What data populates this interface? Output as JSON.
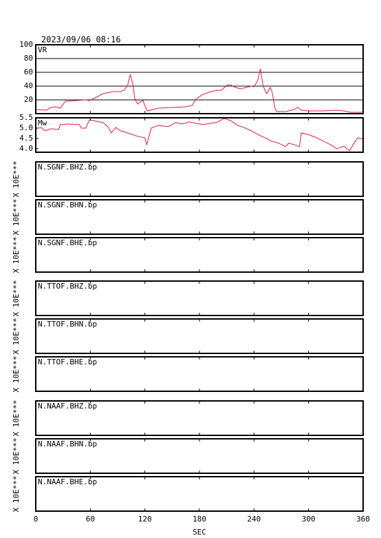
{
  "title": "2023/09/06 08:16",
  "chart_data": [
    {
      "type": "line",
      "label": "VR",
      "color": "#d81b50",
      "x": [
        0,
        12,
        15,
        21,
        27,
        32.5,
        44,
        55,
        59,
        67,
        74,
        85,
        93,
        97,
        101,
        103,
        104,
        107,
        109,
        112,
        116,
        118,
        121,
        123,
        135,
        150,
        165,
        172,
        176,
        184,
        195,
        204,
        210,
        214,
        218,
        225,
        231,
        237,
        240,
        244,
        247,
        248,
        250,
        254,
        258,
        260,
        263,
        265,
        275,
        284,
        288,
        292,
        301,
        316,
        331,
        339,
        346,
        360
      ],
      "values": [
        6,
        5,
        8,
        10,
        8,
        18,
        19,
        20,
        19,
        24,
        29,
        32,
        32,
        34,
        41,
        52,
        57,
        41,
        21,
        14,
        18,
        19,
        8,
        4,
        8,
        9,
        10,
        12,
        21,
        28,
        33,
        34,
        41,
        42,
        39,
        36,
        38,
        40,
        39,
        48,
        65,
        57,
        40,
        29,
        38,
        31,
        8,
        3,
        3,
        6,
        9,
        5,
        4,
        4,
        5,
        4,
        2,
        2
      ],
      "ylim": [
        0,
        100
      ],
      "yticks": [
        20,
        40,
        60,
        80,
        100
      ],
      "grid": true
    },
    {
      "type": "line",
      "label": "Mw",
      "color": "#d81b50",
      "x": [
        0,
        6,
        10,
        17,
        25,
        27,
        36,
        48,
        50,
        55,
        59,
        67,
        74,
        80,
        83,
        88,
        93,
        101,
        112,
        120,
        122,
        127,
        135,
        146,
        154,
        161,
        169,
        176,
        184,
        191,
        199,
        207,
        214,
        222,
        229,
        237,
        244,
        252,
        259,
        267,
        275,
        278,
        284,
        290,
        292,
        301,
        309,
        316,
        324,
        331,
        339,
        345,
        350,
        354,
        360
      ],
      "values": [
        4.97,
        5.03,
        4.87,
        4.97,
        4.93,
        5.17,
        5.2,
        5.17,
        5.0,
        5.0,
        5.4,
        5.33,
        5.27,
        5.03,
        4.77,
        5.03,
        4.87,
        4.77,
        4.6,
        4.53,
        4.2,
        5.0,
        5.13,
        5.07,
        5.27,
        5.2,
        5.3,
        5.23,
        5.17,
        5.23,
        5.27,
        5.47,
        5.37,
        5.13,
        5.03,
        4.87,
        4.7,
        4.53,
        4.37,
        4.27,
        4.1,
        4.27,
        4.2,
        4.1,
        4.77,
        4.67,
        4.53,
        4.37,
        4.2,
        4.0,
        4.13,
        3.9,
        4.27,
        4.53,
        4.47
      ],
      "ylim": [
        3.83,
        5.5
      ],
      "yticks": [
        {
          "value": 4,
          "label": "4.0"
        },
        4.5,
        {
          "value": 5,
          "label": "5.0"
        },
        5.5
      ],
      "grid": false
    }
  ],
  "traces": [
    {
      "label": "N.SGNF.BHZ.bp",
      "ylabel": "X 10E***"
    },
    {
      "label": "N.SGNF.BHN.bp",
      "ylabel": "X 10E***"
    },
    {
      "label": "N.SGNF.BHE.bp",
      "ylabel": "X 10E***"
    },
    {
      "label": "N.TTOF.BHZ.bp",
      "ylabel": "X 10E***"
    },
    {
      "label": "N.TTOF.BHN.bp",
      "ylabel": "X 10E***"
    },
    {
      "label": "N.TTOF.BHE.bp",
      "ylabel": "X 10E***"
    },
    {
      "label": "N.NAAF.BHZ.bp",
      "ylabel": "X 10E***"
    },
    {
      "label": "N.NAAF.BHN.bp",
      "ylabel": "X 10E***"
    },
    {
      "label": "N.NAAF.BHE.bp",
      "ylabel": "X 10E***"
    }
  ],
  "x_axis": {
    "label": "SEC",
    "xlim": [
      0,
      360
    ],
    "xticks": [
      0,
      60,
      120,
      180,
      240,
      300,
      360
    ]
  }
}
